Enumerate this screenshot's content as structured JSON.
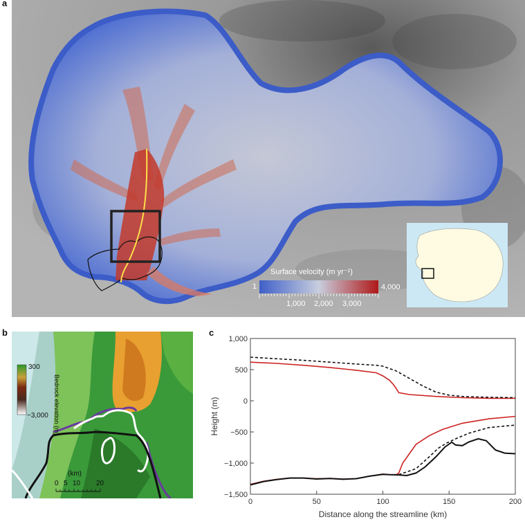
{
  "panels": {
    "a": {
      "letter": "a",
      "colorbar": {
        "title": "Surface velocity (m yr⁻¹)",
        "min_label": "1",
        "max_label": "4,000",
        "tick_labels": [
          "1,000",
          "2,000",
          "3,000"
        ],
        "colors": [
          "#4060c8",
          "#c8d0e0",
          "#b01818"
        ]
      }
    },
    "b": {
      "letter": "b",
      "colorbar": {
        "title": "Bedrock elevation (m)",
        "top_label": "300",
        "bottom_label": "−3,000"
      },
      "scalebar": {
        "unit": "(km)",
        "labels": [
          "0",
          "5",
          "10",
          "20"
        ]
      }
    },
    "c": {
      "letter": "c"
    }
  },
  "chart_data": {
    "type": "line",
    "xlabel": "Distance along the streamline (km)",
    "ylabel": "Height (m)",
    "xlim": [
      0,
      200
    ],
    "ylim": [
      -1500,
      1000
    ],
    "x_ticks": [
      0,
      50,
      100,
      150,
      200
    ],
    "y_ticks": [
      1000,
      500,
      0,
      -500,
      -1000,
      -1500
    ],
    "x_tick_labels": [
      "0",
      "50",
      "100",
      "150",
      "200"
    ],
    "y_tick_labels": [
      "1,000",
      "500",
      "0",
      "−500",
      "−1,000",
      "−1,500"
    ],
    "series": [
      {
        "style": "solid",
        "color": "#cc2222",
        "points": [
          [
            0,
            620
          ],
          [
            20,
            600
          ],
          [
            40,
            570
          ],
          [
            60,
            535
          ],
          [
            80,
            490
          ],
          [
            95,
            450
          ],
          [
            100,
            400
          ],
          [
            105,
            330
          ],
          [
            108,
            260
          ],
          [
            110,
            200
          ],
          [
            112,
            130
          ],
          [
            120,
            100
          ],
          [
            140,
            70
          ],
          [
            160,
            50
          ],
          [
            180,
            40
          ],
          [
            200,
            40
          ]
        ]
      },
      {
        "style": "dashed",
        "color": "#111111",
        "points": [
          [
            0,
            700
          ],
          [
            20,
            675
          ],
          [
            40,
            650
          ],
          [
            60,
            620
          ],
          [
            80,
            590
          ],
          [
            95,
            570
          ],
          [
            100,
            555
          ],
          [
            110,
            480
          ],
          [
            120,
            360
          ],
          [
            130,
            240
          ],
          [
            140,
            140
          ],
          [
            150,
            90
          ],
          [
            160,
            70
          ],
          [
            180,
            55
          ],
          [
            200,
            50
          ]
        ]
      },
      {
        "style": "solid",
        "color": "#cc2222",
        "points": [
          [
            0,
            -1340
          ],
          [
            10,
            -1290
          ],
          [
            20,
            -1260
          ],
          [
            30,
            -1240
          ],
          [
            40,
            -1240
          ],
          [
            50,
            -1250
          ],
          [
            60,
            -1245
          ],
          [
            70,
            -1255
          ],
          [
            80,
            -1250
          ],
          [
            90,
            -1210
          ],
          [
            100,
            -1175
          ],
          [
            105,
            -1185
          ],
          [
            110,
            -1185
          ],
          [
            112,
            -1160
          ],
          [
            115,
            -1000
          ],
          [
            120,
            -850
          ],
          [
            125,
            -700
          ],
          [
            135,
            -560
          ],
          [
            145,
            -460
          ],
          [
            160,
            -360
          ],
          [
            180,
            -290
          ],
          [
            200,
            -250
          ]
        ]
      },
      {
        "style": "dashed",
        "color": "#111111",
        "points": [
          [
            112,
            -1185
          ],
          [
            125,
            -1090
          ],
          [
            135,
            -900
          ],
          [
            142,
            -760
          ],
          [
            148,
            -680
          ],
          [
            155,
            -610
          ],
          [
            165,
            -520
          ],
          [
            180,
            -430
          ],
          [
            200,
            -390
          ]
        ]
      },
      {
        "style": "solid",
        "color": "#111111",
        "points": [
          [
            0,
            -1350
          ],
          [
            10,
            -1295
          ],
          [
            20,
            -1265
          ],
          [
            30,
            -1240
          ],
          [
            40,
            -1240
          ],
          [
            50,
            -1255
          ],
          [
            60,
            -1248
          ],
          [
            70,
            -1260
          ],
          [
            80,
            -1250
          ],
          [
            90,
            -1210
          ],
          [
            100,
            -1180
          ],
          [
            105,
            -1185
          ],
          [
            112,
            -1190
          ],
          [
            118,
            -1200
          ],
          [
            125,
            -1160
          ],
          [
            132,
            -1060
          ],
          [
            140,
            -900
          ],
          [
            147,
            -740
          ],
          [
            152,
            -665
          ],
          [
            155,
            -710
          ],
          [
            160,
            -720
          ],
          [
            165,
            -660
          ],
          [
            172,
            -610
          ],
          [
            178,
            -640
          ],
          [
            185,
            -790
          ],
          [
            192,
            -840
          ],
          [
            200,
            -850
          ]
        ]
      }
    ]
  }
}
